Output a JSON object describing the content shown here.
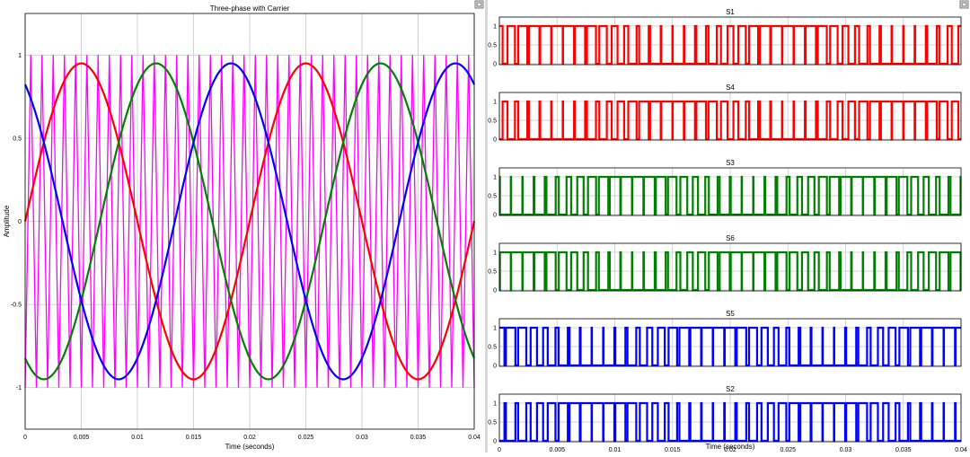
{
  "left_chart": {
    "chart_data": {
      "type": "line",
      "title": "Three-phase with Carrier",
      "xlabel": "Time (seconds)",
      "ylabel": "Amplitude",
      "xlim": [
        0,
        0.04
      ],
      "ylim": [
        -1.25,
        1.25
      ],
      "x_ticks": [
        "0",
        "0.005",
        "0.01",
        "0.015",
        "0.02",
        "0.025",
        "0.03",
        "0.035",
        "0.04"
      ],
      "y_ticks": [
        "1",
        "0.5",
        "0",
        "-0.5",
        "-1"
      ],
      "grid": true,
      "carrier": {
        "waveform": "triangle",
        "min": -1,
        "max": 1,
        "periods_in_window": 40,
        "color": "#ff00ff"
      },
      "series": [
        {
          "waveform": "sine",
          "amplitude": 0.95,
          "frequency_hz": 50,
          "phase_deg": 0,
          "color": "#ff0000"
        },
        {
          "waveform": "sine",
          "amplitude": 0.95,
          "frequency_hz": 50,
          "phase_deg": -120,
          "color": "#008000"
        },
        {
          "waveform": "sine",
          "amplitude": 0.95,
          "frequency_hz": 50,
          "phase_deg": 120,
          "color": "#0000ff"
        }
      ]
    }
  },
  "right_chart": {
    "xlabel": "Time (seconds)",
    "xlim": [
      0,
      0.04
    ],
    "x_ticks": [
      "0",
      "0.005",
      "0.01",
      "0.015",
      "0.02",
      "0.025",
      "0.03",
      "0.035",
      "0.04"
    ],
    "y_ticks": [
      "1",
      "0.5",
      "0"
    ],
    "panels": [
      {
        "chart_data": {
          "type": "line",
          "title": "S1",
          "ylim": [
            0,
            1
          ],
          "color": "#ff0000",
          "signal": "gate",
          "leg": 0,
          "logic": "ref>carrier"
        }
      },
      {
        "chart_data": {
          "type": "line",
          "title": "S4",
          "ylim": [
            0,
            1
          ],
          "color": "#ff0000",
          "signal": "gate",
          "leg": 0,
          "logic": "ref<carrier"
        }
      },
      {
        "chart_data": {
          "type": "line",
          "title": "S3",
          "ylim": [
            0,
            1
          ],
          "color": "#008000",
          "signal": "gate",
          "leg": 1,
          "logic": "ref>carrier"
        }
      },
      {
        "chart_data": {
          "type": "line",
          "title": "S6",
          "ylim": [
            0,
            1
          ],
          "color": "#008000",
          "signal": "gate",
          "leg": 1,
          "logic": "ref<carrier"
        }
      },
      {
        "chart_data": {
          "type": "line",
          "title": "S5",
          "ylim": [
            0,
            1
          ],
          "color": "#0000ff",
          "signal": "gate",
          "leg": 2,
          "logic": "ref>carrier"
        }
      },
      {
        "chart_data": {
          "type": "line",
          "title": "S2",
          "ylim": [
            0,
            1
          ],
          "color": "#0000ff",
          "signal": "gate",
          "leg": 2,
          "logic": "ref<carrier"
        }
      }
    ]
  },
  "colors": {
    "grid": "#c8c8c8",
    "axes": "#000000",
    "background": "#ffffff"
  },
  "icons": {
    "left_corner": "restore-icon",
    "right_corner": "restore-icon"
  }
}
